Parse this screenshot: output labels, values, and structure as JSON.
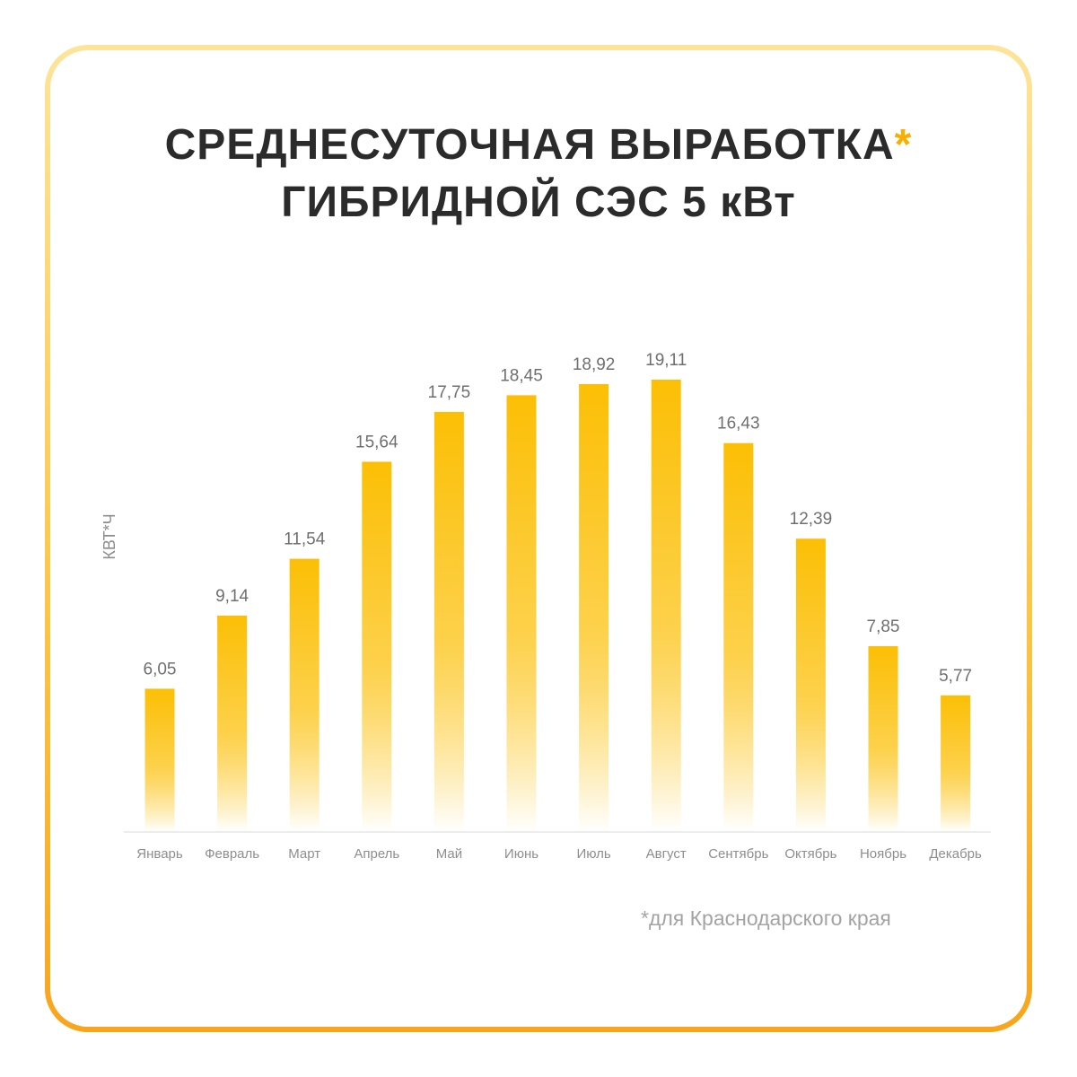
{
  "title": {
    "line1": "СРЕДНЕСУТОЧНАЯ ВЫРАБОТКА",
    "asterisk": "*",
    "line2": "ГИБРИДНОЙ СЭС 5 кВт"
  },
  "footnote": "*для Краснодарского края",
  "colors": {
    "bar_top": "#fcbf05",
    "bar_bottom": "#ffffff",
    "asterisk": "#f8b000",
    "frame_top": "#fde49a",
    "frame_bottom": "#f8a51c"
  },
  "chart_data": {
    "type": "bar",
    "ylabel": "КВТ*Ч",
    "categories": [
      "Январь",
      "Февраль",
      "Март",
      "Апрель",
      "Май",
      "Июнь",
      "Июль",
      "Август",
      "Сентябрь",
      "Октябрь",
      "Ноябрь",
      "Декабрь"
    ],
    "values": [
      6.05,
      9.14,
      11.54,
      15.64,
      17.75,
      18.45,
      18.92,
      19.11,
      16.43,
      12.39,
      7.85,
      5.77
    ],
    "value_labels": [
      "6,05",
      "9,14",
      "11,54",
      "15,64",
      "17,75",
      "18,45",
      "18,92",
      "19,11",
      "16,43",
      "12,39",
      "7,85",
      "5,77"
    ],
    "ylim": [
      0,
      19.11
    ],
    "grid": false,
    "legend": "none"
  }
}
